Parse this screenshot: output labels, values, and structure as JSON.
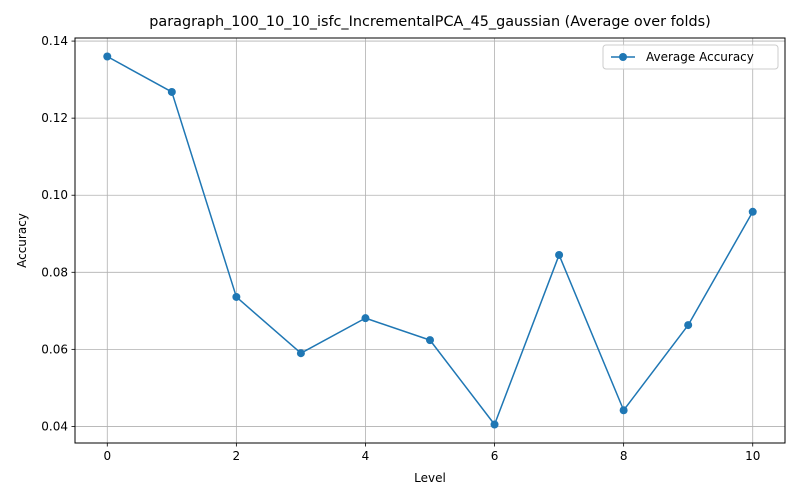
{
  "chart_data": {
    "type": "line",
    "title": "paragraph_100_10_10_isfc_IncrementalPCA_45_gaussian (Average over folds)",
    "xlabel": "Level",
    "ylabel": "Accuracy",
    "x": [
      0,
      1,
      2,
      3,
      4,
      5,
      6,
      7,
      8,
      9,
      10
    ],
    "series": [
      {
        "name": "Average Accuracy",
        "color": "#1f77b4",
        "marker": "circle",
        "values": [
          0.136,
          0.1268,
          0.0736,
          0.059,
          0.0681,
          0.0624,
          0.0405,
          0.0845,
          0.0442,
          0.0663,
          0.0957
        ]
      }
    ],
    "xlim": [
      -0.5,
      10.5
    ],
    "ylim": [
      0.0357,
      0.1408
    ],
    "xticks": [
      0,
      2,
      4,
      6,
      8,
      10
    ],
    "xtick_labels": [
      "0",
      "2",
      "4",
      "6",
      "8",
      "10"
    ],
    "yticks": [
      0.04,
      0.06,
      0.08,
      0.1,
      0.12,
      0.14
    ],
    "ytick_labels": [
      "0.04",
      "0.06",
      "0.08",
      "0.10",
      "0.12",
      "0.14"
    ],
    "grid": true,
    "legend_position": "top-right"
  }
}
